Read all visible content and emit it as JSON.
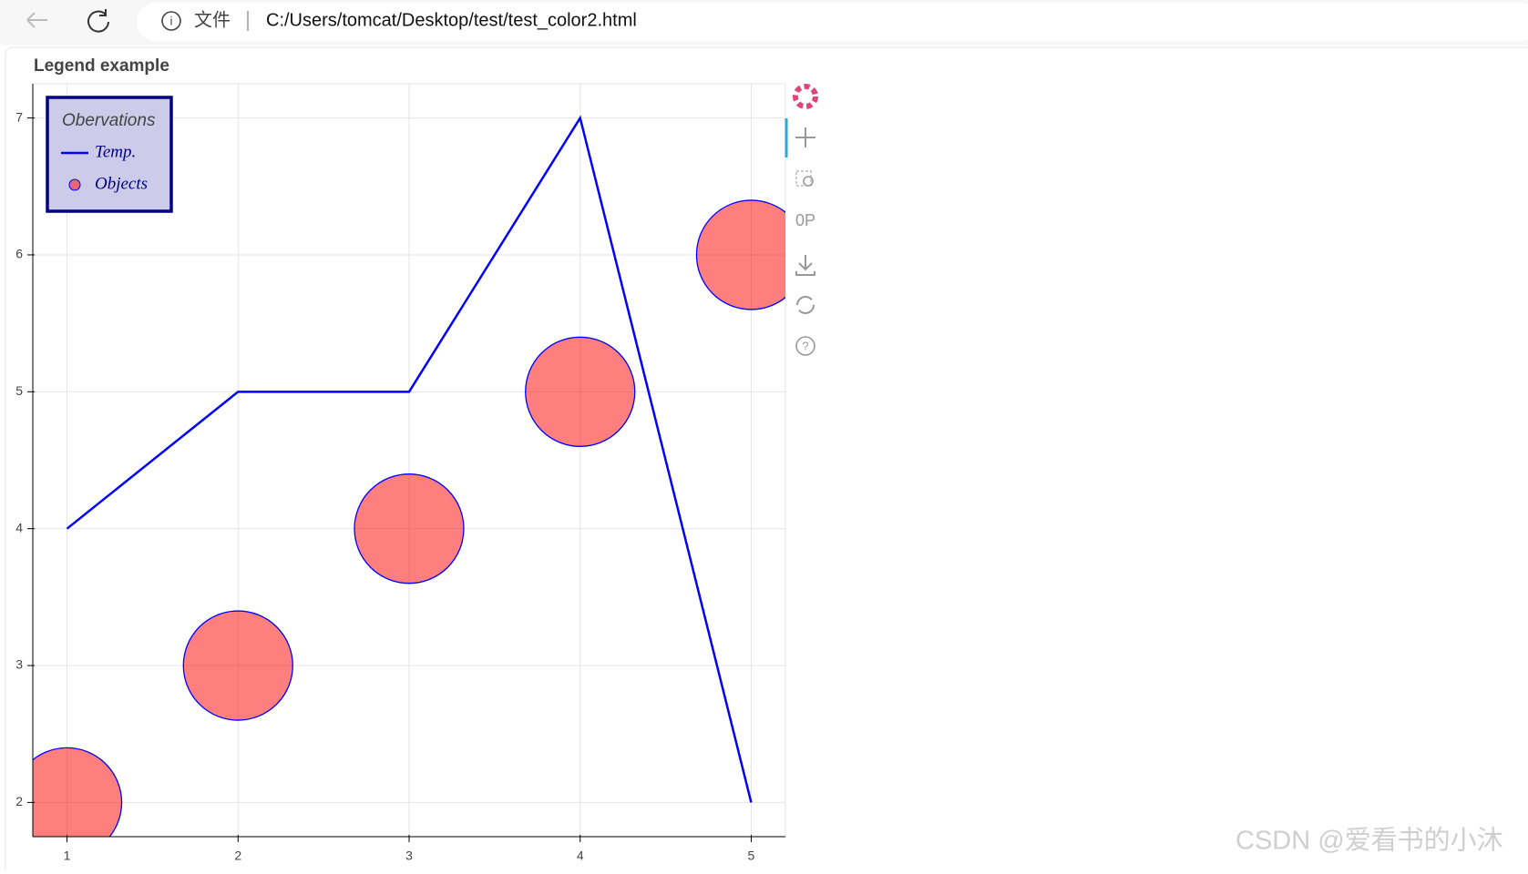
{
  "browser": {
    "file_label": "文件",
    "url": "C:/Users/tomcat/Desktop/test/test_color2.html"
  },
  "watermark": "CSDN @爱看书的小沐",
  "chart_data": {
    "type": "line_scatter",
    "title": "Legend example",
    "legend_title": "Obervations",
    "legend_position": "top_left",
    "x": [
      1,
      2,
      3,
      4,
      5
    ],
    "series": [
      {
        "name": "Temp.",
        "type": "line",
        "color": "blue",
        "values": [
          4,
          5,
          5,
          7,
          2
        ]
      },
      {
        "name": "Objects",
        "type": "scatter",
        "color": "red",
        "stroke": "blue",
        "values": [
          2,
          3,
          4,
          5,
          6
        ]
      }
    ],
    "xlim": [
      0.8,
      5.2
    ],
    "ylim": [
      1.75,
      7.25
    ],
    "xticks": [
      1,
      2,
      3,
      4,
      5
    ],
    "yticks": [
      2,
      3,
      4,
      5,
      6,
      7
    ],
    "grid": true
  }
}
